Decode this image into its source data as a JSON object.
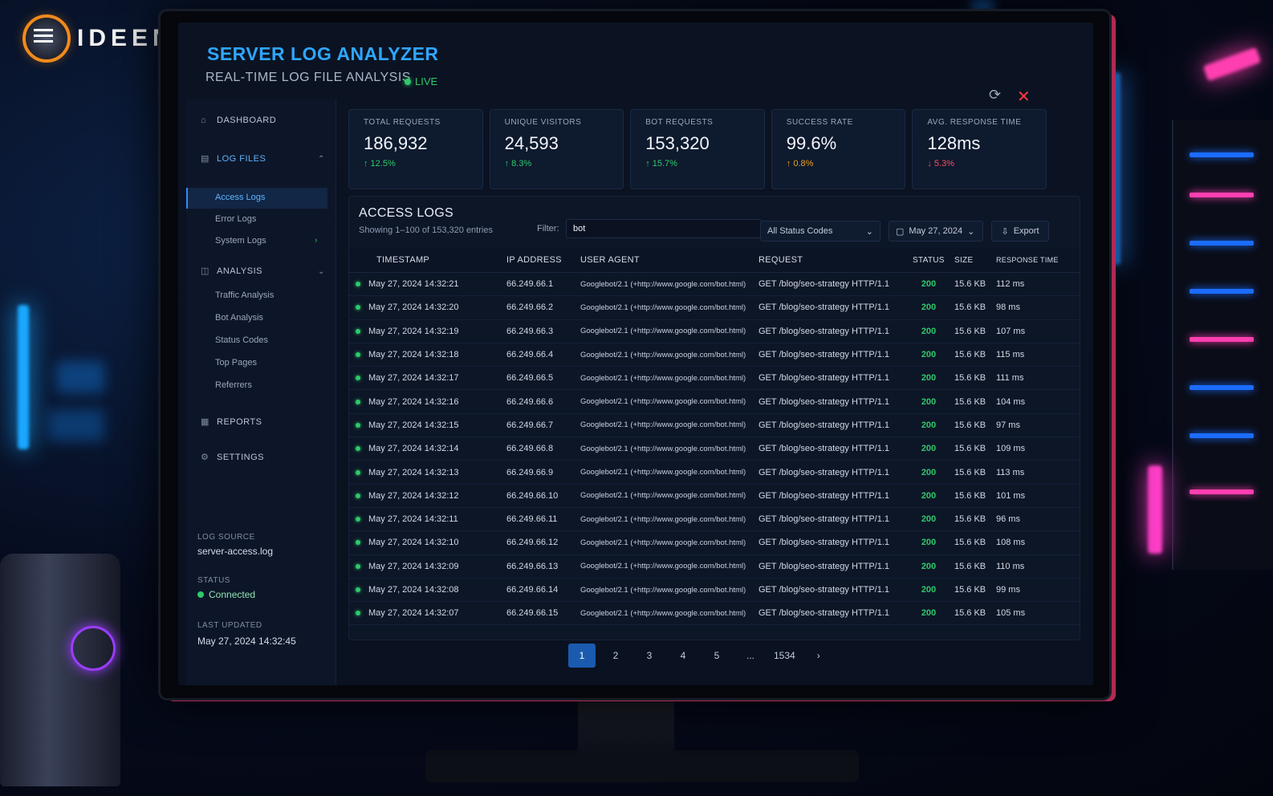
{
  "brand": {
    "name": "IDEEN"
  },
  "header": {
    "title": "SERVER LOG ANALYZER",
    "subtitle": "REAL-TIME LOG FILE ANALYSIS",
    "live": "LIVE"
  },
  "sidebar": {
    "dashboard": "DASHBOARD",
    "log_files": "LOG FILES",
    "log_items": [
      "Access Logs",
      "Error Logs",
      "System Logs"
    ],
    "analysis": "ANALYSIS",
    "analysis_items": [
      "Traffic Analysis",
      "Bot Analysis",
      "Status Codes",
      "Top Pages",
      "Referrers"
    ],
    "reports": "REPORTS",
    "settings": "SETTINGS",
    "log_source_label": "LOG SOURCE",
    "log_source": "server-access.log",
    "status_label": "STATUS",
    "status": "Connected",
    "last_updated_label": "LAST UPDATED",
    "last_updated": "May 27, 2024 14:32:45"
  },
  "stats": [
    {
      "label": "TOTAL REQUESTS",
      "value": "186,932",
      "change": "↑ 12.5%",
      "trend": "up"
    },
    {
      "label": "UNIQUE VISITORS",
      "value": "24,593",
      "change": "↑ 8.3%",
      "trend": "up"
    },
    {
      "label": "BOT REQUESTS",
      "value": "153,320",
      "change": "↑ 15.7%",
      "trend": "up"
    },
    {
      "label": "SUCCESS RATE",
      "value": "99.6%",
      "change": "↑ 0.8%",
      "trend": "up-orange"
    },
    {
      "label": "AVG. RESPONSE TIME",
      "value": "128ms",
      "change": "↓ 5.3%",
      "trend": "down"
    }
  ],
  "logs": {
    "title": "ACCESS LOGS",
    "showing": "Showing 1–100 of 153,320 entries",
    "filter_label": "Filter:",
    "filter_value": "bot",
    "status_select": "All Status Codes",
    "date_select": "May 27, 2024",
    "export": "Export",
    "columns": [
      "TIMESTAMP",
      "IP ADDRESS",
      "USER AGENT",
      "REQUEST",
      "STATUS",
      "SIZE",
      "RESPONSE TIME"
    ],
    "rows": [
      [
        "May 27, 2024 14:32:21",
        "66.249.66.1",
        "Googlebot/2.1 (+http://www.google.com/bot.html)",
        "GET /blog/seo-strategy HTTP/1.1",
        "200",
        "15.6 KB",
        "112 ms"
      ],
      [
        "May 27, 2024 14:32:20",
        "66.249.66.2",
        "Googlebot/2.1 (+http://www.google.com/bot.html)",
        "GET /blog/seo-strategy HTTP/1.1",
        "200",
        "15.6 KB",
        "98 ms"
      ],
      [
        "May 27, 2024 14:32:19",
        "66.249.66.3",
        "Googlebot/2.1 (+http://www.google.com/bot.html)",
        "GET /blog/seo-strategy HTTP/1.1",
        "200",
        "15.6 KB",
        "107 ms"
      ],
      [
        "May 27, 2024 14:32:18",
        "66.249.66.4",
        "Googlebot/2.1 (+http://www.google.com/bot.html)",
        "GET /blog/seo-strategy HTTP/1.1",
        "200",
        "15.6 KB",
        "115 ms"
      ],
      [
        "May 27, 2024 14:32:17",
        "66.249.66.5",
        "Googlebot/2.1 (+http://www.google.com/bot.html)",
        "GET /blog/seo-strategy HTTP/1.1",
        "200",
        "15.6 KB",
        "111 ms"
      ],
      [
        "May 27, 2024 14:32:16",
        "66.249.66.6",
        "Googlebot/2.1 (+http://www.google.com/bot.html)",
        "GET /blog/seo-strategy HTTP/1.1",
        "200",
        "15.6 KB",
        "104 ms"
      ],
      [
        "May 27, 2024 14:32:15",
        "66.249.66.7",
        "Googlebot/2.1 (+http://www.google.com/bot.html)",
        "GET /blog/seo-strategy HTTP/1.1",
        "200",
        "15.6 KB",
        "97 ms"
      ],
      [
        "May 27, 2024 14:32:14",
        "66.249.66.8",
        "Googlebot/2.1 (+http://www.google.com/bot.html)",
        "GET /blog/seo-strategy HTTP/1.1",
        "200",
        "15.6 KB",
        "109 ms"
      ],
      [
        "May 27, 2024 14:32:13",
        "66.249.66.9",
        "Googlebot/2.1 (+http://www.google.com/bot.html)",
        "GET /blog/seo-strategy HTTP/1.1",
        "200",
        "15.6 KB",
        "113 ms"
      ],
      [
        "May 27, 2024 14:32:12",
        "66.249.66.10",
        "Googlebot/2.1 (+http://www.google.com/bot.html)",
        "GET /blog/seo-strategy HTTP/1.1",
        "200",
        "15.6 KB",
        "101 ms"
      ],
      [
        "May 27, 2024 14:32:11",
        "66.249.66.11",
        "Googlebot/2.1 (+http://www.google.com/bot.html)",
        "GET /blog/seo-strategy HTTP/1.1",
        "200",
        "15.6 KB",
        "96 ms"
      ],
      [
        "May 27, 2024 14:32:10",
        "66.249.66.12",
        "Googlebot/2.1 (+http://www.google.com/bot.html)",
        "GET /blog/seo-strategy HTTP/1.1",
        "200",
        "15.6 KB",
        "108 ms"
      ],
      [
        "May 27, 2024 14:32:09",
        "66.249.66.13",
        "Googlebot/2.1 (+http://www.google.com/bot.html)",
        "GET /blog/seo-strategy HTTP/1.1",
        "200",
        "15.6 KB",
        "110 ms"
      ],
      [
        "May 27, 2024 14:32:08",
        "66.249.66.14",
        "Googlebot/2.1 (+http://www.google.com/bot.html)",
        "GET /blog/seo-strategy HTTP/1.1",
        "200",
        "15.6 KB",
        "99 ms"
      ],
      [
        "May 27, 2024 14:32:07",
        "66.249.66.15",
        "Googlebot/2.1 (+http://www.google.com/bot.html)",
        "GET /blog/seo-strategy HTTP/1.1",
        "200",
        "15.6 KB",
        "105 ms"
      ]
    ]
  },
  "pagination": {
    "pages": [
      "1",
      "2",
      "3",
      "4",
      "5",
      "...",
      "1534"
    ],
    "active": "1",
    "next": "›"
  },
  "colors": {
    "accent": "#2fa6ff",
    "success": "#2ec96a",
    "danger": "#ff4b5c",
    "warning": "#f0a020"
  },
  "icons": [
    "home-icon",
    "file-icon",
    "chart-icon",
    "report-icon",
    "gear-icon",
    "refresh-icon",
    "close-icon",
    "calendar-icon",
    "download-icon",
    "chevron-down-icon",
    "chevron-right-icon"
  ]
}
